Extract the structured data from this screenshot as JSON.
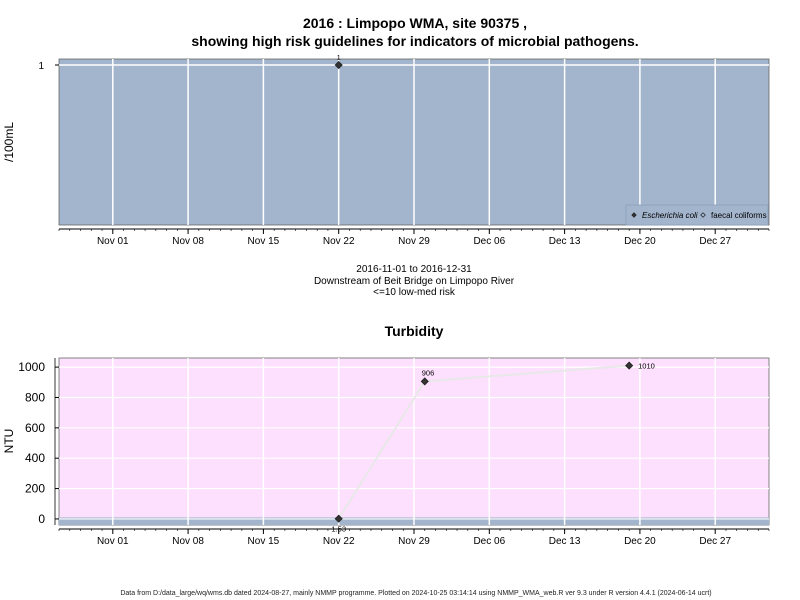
{
  "page": {
    "footer": "Data from D:/data_large/wq/wms.db dated 2024-08-27, mainly NMMP programme. Plotted on 2024-10-25 03:14:14 using NMMP_WMA_web.R ver 9.3 under R version 4.4.1 (2024-06-14 ucrt)"
  },
  "chart_data": [
    {
      "type": "scatter",
      "title": "2016 : Limpopo WMA, site 90375 ,",
      "subtitle": "showing high risk guidelines for indicators of microbial pathogens.",
      "xlabel": "",
      "ylabel": "/100mL",
      "x_range": [
        "2016-10-27",
        "2017-01-01"
      ],
      "x_ticks": [
        "2016-11-01",
        "2016-11-08",
        "2016-11-15",
        "2016-11-22",
        "2016-11-29",
        "2016-12-06",
        "2016-12-13",
        "2016-12-20",
        "2016-12-27"
      ],
      "x_tick_labels": [
        "Nov 01",
        "Nov 08",
        "Nov 15",
        "Nov 22",
        "Nov 29",
        "Dec 06",
        "Dec 13",
        "Dec 20",
        "Dec 27"
      ],
      "y_ticks": [
        1
      ],
      "y_tick_labels": [
        "1"
      ],
      "grid": true,
      "background": "#a3b5cd",
      "legend": {
        "placement": "bottom-right",
        "entries": [
          "Escherichia coli",
          "faecal coliforms"
        ]
      },
      "series": [
        {
          "name": "Escherichia coli",
          "marker": "filled-diamond",
          "points": [
            {
              "x": "2016-11-22",
              "y": 1,
              "label": "1"
            }
          ]
        },
        {
          "name": "faecal coliforms",
          "marker": "open-diamond",
          "points": []
        }
      ],
      "caption_lines": [
        "2016-11-01 to 2016-12-31",
        "Downstream of Beit Bridge on Limpopo River",
        "<=10 low-med risk"
      ]
    },
    {
      "type": "line",
      "title": "Turbidity",
      "xlabel": "",
      "ylabel": "NTU",
      "x_range": [
        "2016-10-27",
        "2017-01-01"
      ],
      "x_ticks": [
        "2016-11-01",
        "2016-11-08",
        "2016-11-15",
        "2016-11-22",
        "2016-11-29",
        "2016-12-06",
        "2016-12-13",
        "2016-12-20",
        "2016-12-27"
      ],
      "x_tick_labels": [
        "Nov 01",
        "Nov 08",
        "Nov 15",
        "Nov 22",
        "Nov 29",
        "Dec 06",
        "Dec 13",
        "Dec 20",
        "Dec 27"
      ],
      "ylim": [
        -40,
        1060
      ],
      "y_ticks": [
        0,
        200,
        400,
        600,
        800,
        1000
      ],
      "y_tick_labels": [
        "0",
        "200",
        "400",
        "600",
        "800",
        "1000"
      ],
      "grid": true,
      "background": "#fde0fd",
      "band": {
        "from": -40,
        "to": 10,
        "color": "#a3b5cd"
      },
      "series": [
        {
          "name": "",
          "points": [
            {
              "x": "2016-11-22",
              "y": 1.53,
              "label": "1.53"
            },
            {
              "x": "2016-11-30",
              "y": 906,
              "label": "906"
            },
            {
              "x": "2016-12-19",
              "y": 1010,
              "label": "1010"
            }
          ]
        }
      ]
    }
  ]
}
